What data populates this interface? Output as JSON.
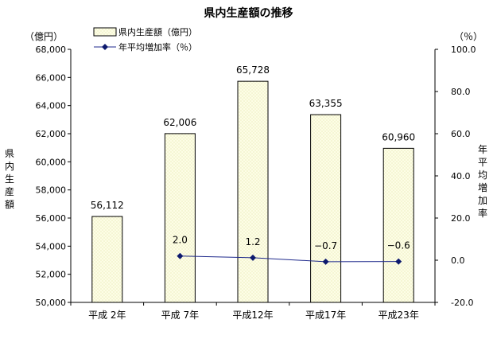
{
  "chart_data": {
    "type": "bar",
    "title": "県内生産額の推移",
    "categories": [
      "平成 2年",
      "平成 7年",
      "平成12年",
      "平成17年",
      "平成23年"
    ],
    "series": [
      {
        "name": "県内生産額（億円）",
        "type": "bar",
        "axis": "left",
        "values": [
          56112,
          62006,
          65728,
          63355,
          60960
        ],
        "labels": [
          "56,112",
          "62,006",
          "65,728",
          "63,355",
          "60,960"
        ]
      },
      {
        "name": "年平均増加率（％）",
        "type": "line",
        "axis": "right",
        "values": [
          null,
          2.0,
          1.2,
          -0.7,
          -0.6
        ],
        "labels": [
          "",
          "2.0",
          "1.2",
          "−0.7",
          "−0.6"
        ]
      }
    ],
    "ylabel": "県内生産額",
    "yunit": "（億円）",
    "ylim": [
      50000,
      68000
    ],
    "yticks": [
      "50,000",
      "52,000",
      "54,000",
      "56,000",
      "58,000",
      "60,000",
      "62,000",
      "64,000",
      "66,000",
      "68,000"
    ],
    "y2label": "年平均増加率",
    "y2unit": "（％）",
    "y2lim": [
      -20,
      100
    ],
    "y2ticks": [
      "-20.0",
      "0.0",
      "20.0",
      "40.0",
      "60.0",
      "80.0",
      "100.0"
    ],
    "legend": "top-left",
    "grid": false,
    "colors": {
      "bar_fill": "#fdfde6",
      "bar_dots": "#e3e4a8",
      "line": "#1f2a8c",
      "marker": "#0d1a6e"
    }
  }
}
